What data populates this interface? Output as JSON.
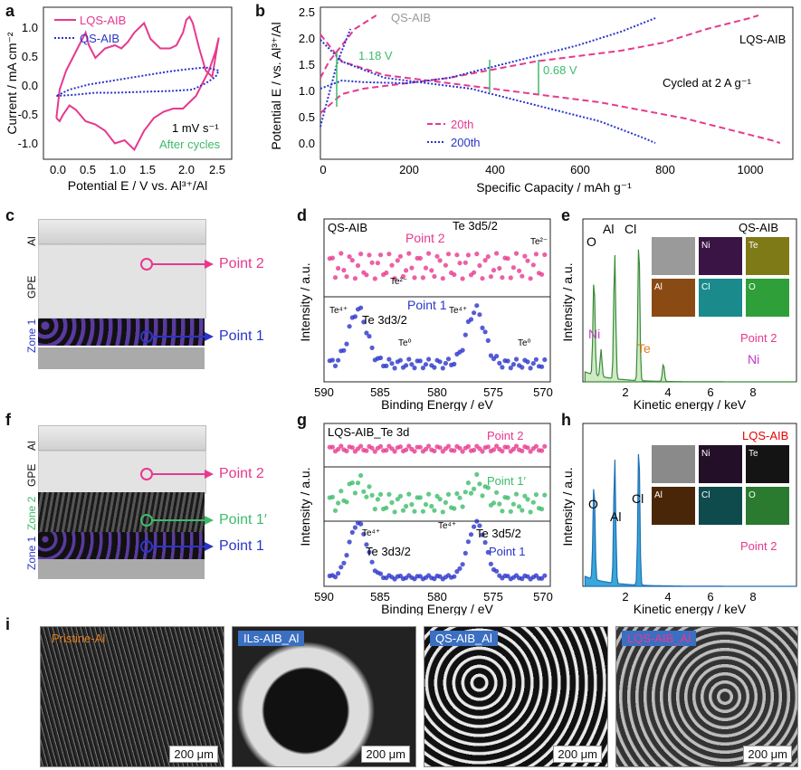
{
  "panels": {
    "a": {
      "letter": "a",
      "ylabel": "Current / mA cm⁻²",
      "xlabel": "Potential E / V vs. Al³⁺/Al",
      "xticks": [
        "0.0",
        "0.5",
        "1.0",
        "1.5",
        "2.0",
        "2.5"
      ],
      "yticks": [
        "1.0",
        "0.5",
        "0.0",
        "-0.5",
        "-1.0"
      ],
      "legend": [
        "LQS-AIB",
        "QS-AIB"
      ],
      "note1": "1 mV s⁻¹",
      "note2": "After cycles"
    },
    "b": {
      "letter": "b",
      "ylabel": "Potential E / vs. Al³⁺/Al",
      "xlabel": "Specific Capacity / mAh g⁻¹",
      "xticks": [
        "0",
        "200",
        "400",
        "600",
        "800",
        "1000"
      ],
      "yticks": [
        "0.0",
        "0.5",
        "1.0",
        "1.5",
        "2.0",
        "2.5"
      ],
      "legend": [
        "20th",
        "200th"
      ],
      "lbl_qs": "QS-AIB",
      "lbl_lqs": "LQS-AIB",
      "volt1": "1.18 V",
      "volt2": "0.68 V",
      "cond": "Cycled at 2 A g⁻¹"
    },
    "c": {
      "letter": "c",
      "layer_al": "Al",
      "layer_gpe": "GPE",
      "layer_zone1": "Zone 1",
      "point2": "Point 2",
      "point1": "Point 1"
    },
    "d": {
      "letter": "d",
      "title": "QS-AIB",
      "peak_te52": "Te 3d5/2",
      "te2m_a": "Te²⁻",
      "te2m_b": "Te²⁻",
      "point2": "Point 2",
      "point1": "Point 1",
      "te4p_a": "Te⁴⁺",
      "te4p_b": "Te⁴⁺",
      "peak_te32": "Te 3d3/2",
      "te0_a": "Te⁰",
      "te0_b": "Te⁰",
      "ylabel": "Intensity / a.u.",
      "xlabel": "Binding Energy / eV",
      "xticks": [
        "590",
        "585",
        "580",
        "575",
        "570"
      ]
    },
    "e": {
      "letter": "e",
      "title": "QS-AIB",
      "elements": [
        "O",
        "Al",
        "Cl",
        "Ni",
        "Te",
        "Ni"
      ],
      "map_labels": [
        "Ni",
        "Te",
        "Al",
        "Cl",
        "O"
      ],
      "point": "Point 2",
      "ylabel": "Intensity / a.u.",
      "xlabel": "Kinetic energy / keV",
      "xticks": [
        "2",
        "4",
        "6",
        "8"
      ]
    },
    "f": {
      "letter": "f",
      "layer_al": "Al",
      "layer_gpe": "GPE",
      "layer_zone2": "Zone 2",
      "layer_zone1": "Zone 1",
      "point2": "Point 2",
      "point1p": "Point 1′",
      "point1": "Point 1"
    },
    "g": {
      "letter": "g",
      "title": "LQS-AIB_Te 3d",
      "point2": "Point 2",
      "point1p": "Point 1′",
      "point1": "Point 1",
      "te4p_a": "Te⁴⁺",
      "te4p_b": "Te⁴⁺",
      "peak_te32": "Te 3d3/2",
      "peak_te52": "Te 3d5/2",
      "ylabel": "Intensity / a.u.",
      "xlabel": "Binding Energy / eV",
      "xticks": [
        "590",
        "585",
        "580",
        "575",
        "570"
      ]
    },
    "h": {
      "letter": "h",
      "title": "LQS-AIB",
      "elements": [
        "O",
        "Al",
        "Cl"
      ],
      "map_labels": [
        "Ni",
        "Te",
        "Al",
        "Cl",
        "O"
      ],
      "point": "Point 2",
      "ylabel": "Intensity / a.u.",
      "xlabel": "Kinetic energy / keV",
      "xticks": [
        "2",
        "4",
        "6",
        "8"
      ]
    },
    "i": {
      "letter": "i",
      "images": [
        {
          "tag": "Pristine-Al",
          "scale": "200 μm"
        },
        {
          "tag": "ILs-AIB_Al",
          "scale": "200 μm"
        },
        {
          "tag": "QS-AIB_Al",
          "scale": "200 μm"
        },
        {
          "tag": "LQS-AIB_Al",
          "scale": "200 μm"
        }
      ]
    }
  },
  "chart_data": [
    {
      "panel": "a",
      "type": "line",
      "title": "",
      "xlabel": "Potential E / V vs. Al³⁺/Al",
      "ylabel": "Current / mA cm⁻²",
      "xlim": [
        -0.2,
        2.7
      ],
      "ylim": [
        -1.2,
        1.2
      ],
      "series": [
        {
          "name": "LQS-AIB",
          "style": "solid",
          "color": "#e6398f",
          "x": [
            0.0,
            0.05,
            0.1,
            0.2,
            0.3,
            0.45,
            0.6,
            0.75,
            0.9,
            1.05,
            1.2,
            1.35,
            1.5,
            1.65,
            1.8,
            1.95,
            2.05,
            2.15,
            2.25,
            2.35,
            2.45,
            2.5,
            2.48,
            2.4,
            2.3,
            2.2,
            2.1,
            2.05,
            2.0,
            1.95,
            1.85,
            1.75,
            1.6,
            1.45,
            1.35,
            1.2,
            1.1,
            1.0,
            0.9,
            0.75,
            0.6,
            0.5,
            0.45,
            0.35,
            0.25,
            0.15,
            0.05,
            0.0
          ],
          "y": [
            -0.55,
            -0.6,
            -0.5,
            -0.35,
            -0.42,
            -0.6,
            -0.65,
            -0.75,
            -0.95,
            -0.9,
            -1.05,
            -0.75,
            -0.55,
            -0.45,
            -0.4,
            -0.4,
            -0.3,
            -0.2,
            0.0,
            0.2,
            0.5,
            0.72,
            0.6,
            0.1,
            0.2,
            0.55,
            0.95,
            1.05,
            1.0,
            0.8,
            0.6,
            0.55,
            0.55,
            0.7,
            0.95,
            0.8,
            0.65,
            0.55,
            0.6,
            0.55,
            0.4,
            0.6,
            0.8,
            0.6,
            0.4,
            0.2,
            -0.1,
            -0.55
          ]
        },
        {
          "name": "QS-AIB",
          "style": "dotted",
          "color": "#2a35c9",
          "x": [
            0.0,
            0.3,
            0.6,
            0.9,
            1.2,
            1.5,
            1.8,
            2.1,
            2.3,
            2.45,
            2.5,
            2.3,
            2.0,
            1.7,
            1.4,
            1.1,
            0.8,
            0.5,
            0.2,
            0.0
          ],
          "y": [
            -0.2,
            -0.18,
            -0.15,
            -0.15,
            -0.14,
            -0.13,
            -0.12,
            -0.1,
            0.0,
            0.1,
            0.2,
            0.25,
            0.22,
            0.18,
            0.13,
            0.08,
            0.03,
            -0.02,
            -0.1,
            -0.2
          ]
        }
      ]
    },
    {
      "panel": "b",
      "type": "line",
      "title": "",
      "xlabel": "Specific Capacity / mAh g⁻¹",
      "ylabel": "Potential E / vs. Al³⁺/Al",
      "xlim": [
        0,
        1100
      ],
      "ylim": [
        -0.2,
        2.6
      ],
      "series": [
        {
          "name": "20th (LQS charge)",
          "style": "dashed",
          "color": "#e6398f",
          "x": [
            0,
            50,
            100,
            200,
            300,
            400,
            500,
            600,
            700,
            800,
            900,
            1000,
            1020
          ],
          "y": [
            0.65,
            1.0,
            1.1,
            1.2,
            1.3,
            1.45,
            1.6,
            1.7,
            1.8,
            1.95,
            2.2,
            2.4,
            2.45
          ]
        },
        {
          "name": "20th (LQS discharge)",
          "style": "dashed",
          "color": "#e6398f",
          "x": [
            0,
            50,
            150,
            250,
            350,
            450,
            550,
            650,
            750,
            850,
            950,
            1050,
            1070
          ],
          "y": [
            2.1,
            1.6,
            1.35,
            1.25,
            1.15,
            1.05,
            0.95,
            0.85,
            0.7,
            0.55,
            0.35,
            0.15,
            0.1
          ]
        },
        {
          "name": "200th (LQS charge)",
          "style": "dotted",
          "color": "#2a35c9",
          "x": [
            0,
            50,
            100,
            200,
            300,
            400,
            500,
            600,
            700,
            780
          ],
          "y": [
            1.1,
            1.25,
            1.22,
            1.2,
            1.3,
            1.5,
            1.7,
            1.9,
            2.15,
            2.4
          ]
        },
        {
          "name": "200th (LQS discharge)",
          "style": "dotted",
          "color": "#2a35c9",
          "x": [
            0,
            50,
            150,
            250,
            350,
            450,
            550,
            650,
            750,
            780
          ],
          "y": [
            2.0,
            1.6,
            1.3,
            1.2,
            1.1,
            0.9,
            0.7,
            0.5,
            0.2,
            0.1
          ]
        },
        {
          "name": "20th (QS)",
          "style": "dashed",
          "color": "#e6398f",
          "x": [
            0,
            20,
            40,
            60,
            80,
            100,
            120,
            130
          ],
          "y": [
            1.3,
            1.6,
            1.8,
            2.0,
            2.2,
            2.3,
            2.4,
            2.45
          ]
        },
        {
          "name": "200th (QS)",
          "style": "dotted",
          "color": "#2a35c9",
          "x": [
            0,
            20,
            40,
            60,
            70
          ],
          "y": [
            0.4,
            1.0,
            1.6,
            2.0,
            2.2
          ]
        }
      ]
    },
    {
      "panel": "d",
      "type": "scatter",
      "title": "QS-AIB",
      "xlabel": "Binding Energy / eV",
      "ylabel": "Intensity / a.u.",
      "xlim": [
        590,
        570
      ],
      "series": [
        {
          "name": "Point 2",
          "color": "#e6398f",
          "peaks_eV": []
        },
        {
          "name": "Point 1",
          "color": "#2a35c9",
          "peaks_eV": [
            587.0,
            576.6
          ]
        }
      ]
    },
    {
      "panel": "e",
      "type": "area",
      "title": "QS-AIB",
      "xlabel": "Kinetic energy / keV",
      "ylabel": "Intensity / a.u.",
      "xlim": [
        0,
        10
      ],
      "peaks_keV": {
        "O": 0.52,
        "Al": 1.49,
        "Cl": 2.62,
        "Ni": 0.85,
        "Te": 3.77
      }
    },
    {
      "panel": "g",
      "type": "scatter",
      "title": "LQS-AIB_Te 3d",
      "xlabel": "Binding Energy / eV",
      "ylabel": "Intensity / a.u.",
      "xlim": [
        590,
        570
      ],
      "series": [
        {
          "name": "Point 2",
          "color": "#e6398f",
          "peaks_eV": []
        },
        {
          "name": "Point 1′",
          "color": "#3dbb6b",
          "peaks_eV": [
            587.0,
            576.5
          ]
        },
        {
          "name": "Point 1",
          "color": "#2a35c9",
          "peaks_eV": [
            587.0,
            576.5
          ]
        }
      ]
    },
    {
      "panel": "h",
      "type": "area",
      "title": "LQS-AIB",
      "xlabel": "Kinetic energy / keV",
      "ylabel": "Intensity / a.u.",
      "xlim": [
        0,
        10
      ],
      "peaks_keV": {
        "O": 0.52,
        "Al": 1.49,
        "Cl": 2.62
      }
    }
  ],
  "colors": {
    "pink": "#e6398f",
    "blue": "#2a35c9",
    "green": "#3dbb6b",
    "orange": "#e07b1c",
    "gray": "#999999"
  }
}
